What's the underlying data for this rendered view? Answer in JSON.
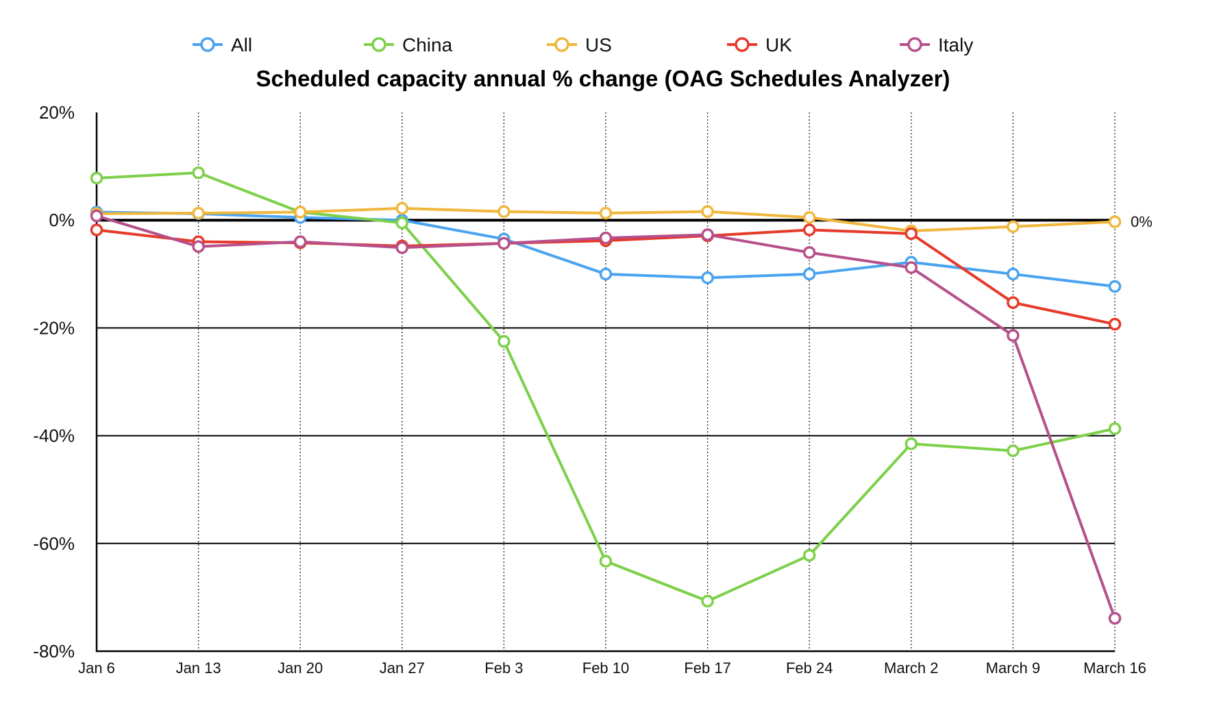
{
  "chart_data": {
    "type": "line",
    "title": "Scheduled capacity annual % change (OAG Schedules Analyzer)",
    "xlabel": "",
    "ylabel": "",
    "ylim": [
      -80,
      20
    ],
    "y_ticks": [
      "20%",
      "0%",
      "-20%",
      "-40%",
      "-60%",
      "-80%"
    ],
    "y_tick_values": [
      20,
      0,
      -20,
      -40,
      -60,
      -80
    ],
    "categories": [
      "Jan 6",
      "Jan 13",
      "Jan 20",
      "Jan 27",
      "Feb 3",
      "Feb 10",
      "Feb 17",
      "Feb 24",
      "March 2",
      "March 9",
      "March 16"
    ],
    "reference_label": "0%",
    "legend_position": "top",
    "grid": "vertical dotted, horizontal solid",
    "series": [
      {
        "name": "All",
        "color": "#4aa3f0",
        "values": [
          1.5,
          1.2,
          0.5,
          0,
          -3.5,
          -10,
          -10.7,
          -10,
          -7.8,
          -10,
          -12.3
        ]
      },
      {
        "name": "China",
        "color": "#7dd04a",
        "values": [
          7.8,
          8.8,
          1.5,
          -0.5,
          -22.5,
          -63.3,
          -70.7,
          -62.2,
          -41.5,
          -42.8,
          -38.7
        ]
      },
      {
        "name": "US",
        "color": "#f0b73c",
        "values": [
          1.2,
          1.3,
          1.5,
          2.2,
          1.6,
          1.3,
          1.6,
          0.5,
          -2,
          -1.2,
          -0.3
        ]
      },
      {
        "name": "UK",
        "color": "#e63a2a",
        "values": [
          -1.8,
          -4,
          -4.2,
          -4.8,
          -4.3,
          -3.8,
          -2.9,
          -1.8,
          -2.5,
          -15.3,
          -19.3
        ]
      },
      {
        "name": "Italy",
        "color": "#b5508a",
        "values": [
          0.8,
          -4.9,
          -4,
          -5.1,
          -4.3,
          -3.3,
          -2.7,
          -6,
          -8.8,
          -21.4,
          -73.9
        ]
      }
    ]
  }
}
